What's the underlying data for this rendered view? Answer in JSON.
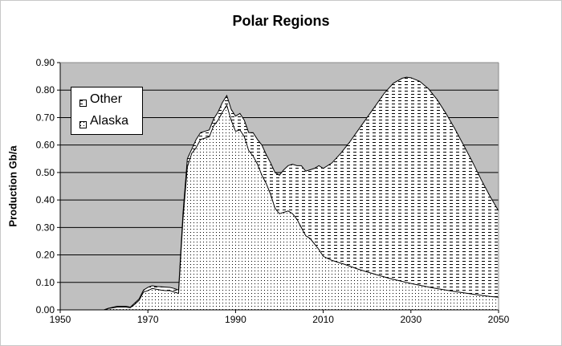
{
  "chart_data": {
    "type": "area",
    "title": "Polar Regions",
    "xlabel": "",
    "ylabel": "Production Gb/a",
    "xlim": [
      1950,
      2050
    ],
    "ylim": [
      0,
      0.9
    ],
    "x_ticks": [
      1950,
      1970,
      1990,
      2010,
      2030,
      2050
    ],
    "y_ticks": [
      0.0,
      0.1,
      0.2,
      0.3,
      0.4,
      0.5,
      0.6,
      0.7,
      0.8,
      0.9
    ],
    "grid": true,
    "stacked": true,
    "legend_position": "top-left",
    "legend": [
      "Other",
      "Alaska"
    ],
    "plot_background": "#c0c0c0",
    "series": [
      {
        "name": "Alaska",
        "pattern": "dots",
        "points": [
          [
            1960,
            0
          ],
          [
            1961,
            0.005
          ],
          [
            1963,
            0.01
          ],
          [
            1965,
            0.01
          ],
          [
            1966,
            0.008
          ],
          [
            1967,
            0.02
          ],
          [
            1968,
            0.035
          ],
          [
            1969,
            0.065
          ],
          [
            1970,
            0.07
          ],
          [
            1971,
            0.078
          ],
          [
            1972,
            0.075
          ],
          [
            1973,
            0.072
          ],
          [
            1974,
            0.07
          ],
          [
            1975,
            0.07
          ],
          [
            1976,
            0.065
          ],
          [
            1977,
            0.06
          ],
          [
            1978,
            0.33
          ],
          [
            1979,
            0.52
          ],
          [
            1980,
            0.57
          ],
          [
            1981,
            0.59
          ],
          [
            1982,
            0.62
          ],
          [
            1983,
            0.625
          ],
          [
            1984,
            0.63
          ],
          [
            1985,
            0.67
          ],
          [
            1986,
            0.69
          ],
          [
            1987,
            0.72
          ],
          [
            1988,
            0.745
          ],
          [
            1989,
            0.69
          ],
          [
            1990,
            0.65
          ],
          [
            1991,
            0.655
          ],
          [
            1992,
            0.63
          ],
          [
            1993,
            0.58
          ],
          [
            1994,
            0.56
          ],
          [
            1995,
            0.53
          ],
          [
            1996,
            0.49
          ],
          [
            1997,
            0.46
          ],
          [
            1998,
            0.42
          ],
          [
            1999,
            0.37
          ],
          [
            2000,
            0.35
          ],
          [
            2001,
            0.355
          ],
          [
            2002,
            0.36
          ],
          [
            2003,
            0.35
          ],
          [
            2004,
            0.33
          ],
          [
            2005,
            0.3
          ],
          [
            2006,
            0.27
          ],
          [
            2007,
            0.26
          ],
          [
            2008,
            0.24
          ],
          [
            2009,
            0.22
          ],
          [
            2010,
            0.195
          ],
          [
            2012,
            0.18
          ],
          [
            2015,
            0.165
          ],
          [
            2018,
            0.148
          ],
          [
            2020,
            0.138
          ],
          [
            2025,
            0.115
          ],
          [
            2030,
            0.096
          ],
          [
            2035,
            0.08
          ],
          [
            2040,
            0.067
          ],
          [
            2045,
            0.055
          ],
          [
            2048,
            0.049
          ],
          [
            2050,
            0.046
          ]
        ]
      },
      {
        "name": "Other",
        "pattern": "dashes",
        "points": [
          [
            1960,
            0
          ],
          [
            1961,
            0.006
          ],
          [
            1963,
            0.013
          ],
          [
            1965,
            0.013
          ],
          [
            1966,
            0.01
          ],
          [
            1967,
            0.025
          ],
          [
            1968,
            0.04
          ],
          [
            1969,
            0.072
          ],
          [
            1970,
            0.082
          ],
          [
            1971,
            0.088
          ],
          [
            1972,
            0.085
          ],
          [
            1973,
            0.084
          ],
          [
            1974,
            0.083
          ],
          [
            1975,
            0.082
          ],
          [
            1976,
            0.078
          ],
          [
            1977,
            0.072
          ],
          [
            1978,
            0.35
          ],
          [
            1979,
            0.55
          ],
          [
            1980,
            0.585
          ],
          [
            1981,
            0.62
          ],
          [
            1982,
            0.645
          ],
          [
            1983,
            0.65
          ],
          [
            1984,
            0.655
          ],
          [
            1985,
            0.695
          ],
          [
            1986,
            0.72
          ],
          [
            1987,
            0.755
          ],
          [
            1988,
            0.78
          ],
          [
            1989,
            0.73
          ],
          [
            1990,
            0.705
          ],
          [
            1991,
            0.715
          ],
          [
            1992,
            0.69
          ],
          [
            1993,
            0.645
          ],
          [
            1994,
            0.645
          ],
          [
            1995,
            0.62
          ],
          [
            1996,
            0.6
          ],
          [
            1997,
            0.565
          ],
          [
            1998,
            0.535
          ],
          [
            1999,
            0.5
          ],
          [
            2000,
            0.49
          ],
          [
            2001,
            0.51
          ],
          [
            2002,
            0.525
          ],
          [
            2003,
            0.53
          ],
          [
            2004,
            0.525
          ],
          [
            2005,
            0.525
          ],
          [
            2006,
            0.505
          ],
          [
            2007,
            0.51
          ],
          [
            2008,
            0.515
          ],
          [
            2009,
            0.525
          ],
          [
            2010,
            0.515
          ],
          [
            2012,
            0.535
          ],
          [
            2014,
            0.57
          ],
          [
            2016,
            0.61
          ],
          [
            2018,
            0.655
          ],
          [
            2020,
            0.7
          ],
          [
            2022,
            0.745
          ],
          [
            2024,
            0.79
          ],
          [
            2026,
            0.825
          ],
          [
            2028,
            0.843
          ],
          [
            2029,
            0.847
          ],
          [
            2030,
            0.845
          ],
          [
            2032,
            0.832
          ],
          [
            2034,
            0.805
          ],
          [
            2036,
            0.765
          ],
          [
            2038,
            0.715
          ],
          [
            2040,
            0.66
          ],
          [
            2042,
            0.6
          ],
          [
            2044,
            0.54
          ],
          [
            2046,
            0.475
          ],
          [
            2048,
            0.415
          ],
          [
            2050,
            0.36
          ]
        ]
      }
    ]
  }
}
